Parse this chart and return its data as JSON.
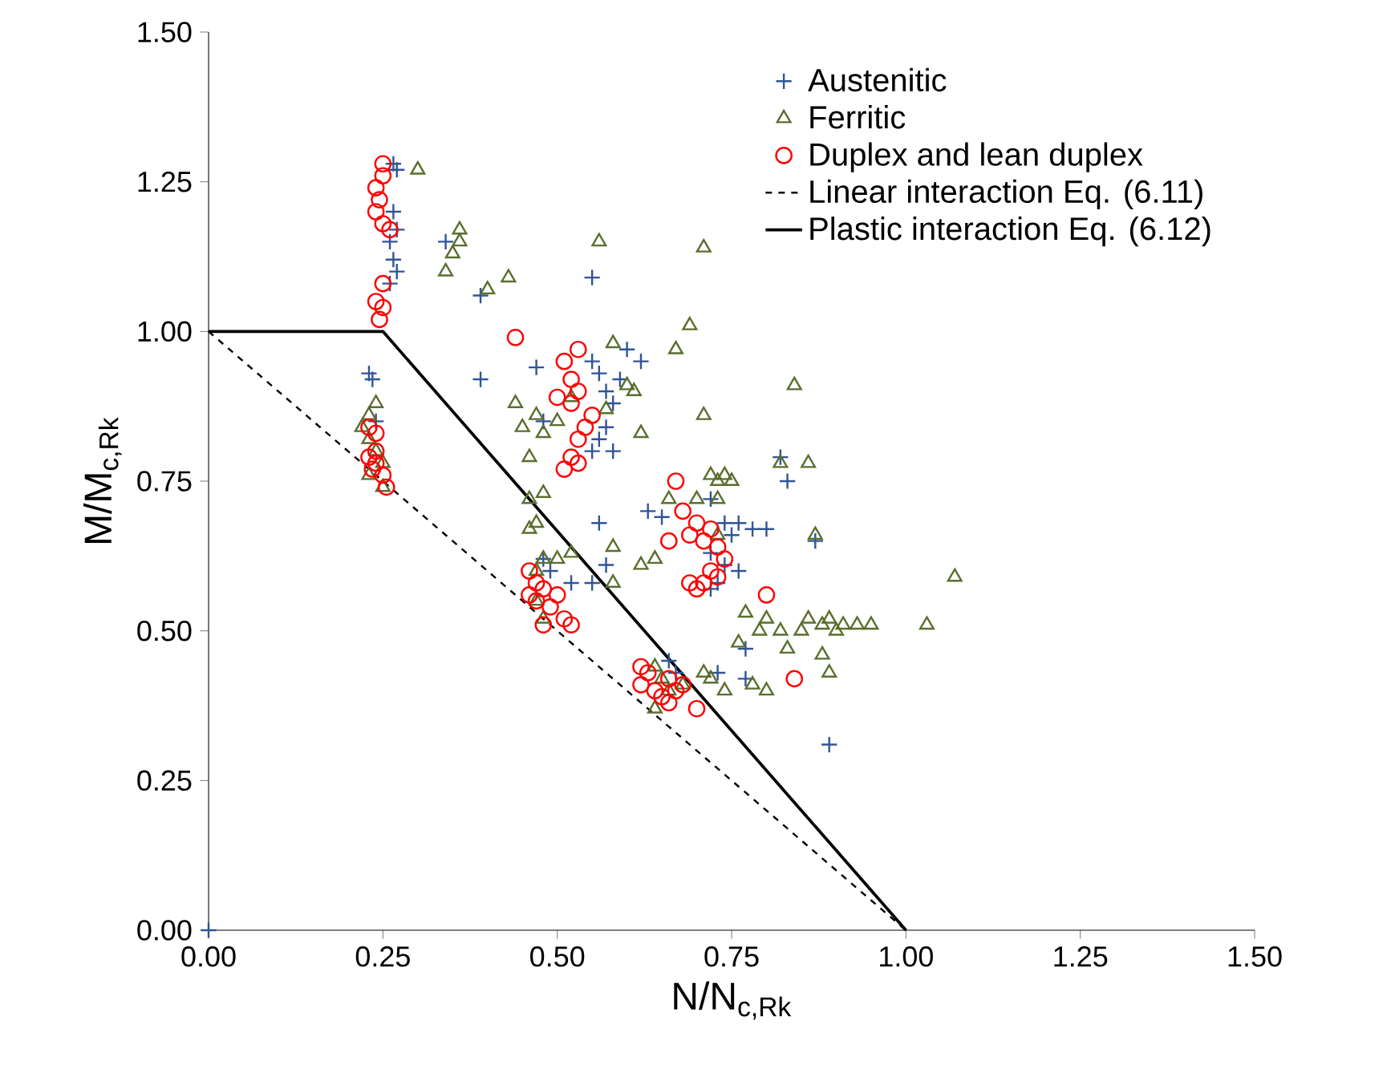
{
  "chart_data": {
    "type": "scatter",
    "xlabel": "N/N$_{c,Rk}$",
    "ylabel": "M/M$_{c,Rk}$",
    "xlim": [
      0,
      1.5
    ],
    "ylim": [
      0,
      1.5
    ],
    "xticks": [
      {
        "value": 0,
        "label": "0.00"
      },
      {
        "value": 0.25,
        "label": "0.25"
      },
      {
        "value": 0.5,
        "label": "0.50"
      },
      {
        "value": 0.75,
        "label": "0.75"
      },
      {
        "value": 1,
        "label": "1.00"
      },
      {
        "value": 1.25,
        "label": "1.25"
      },
      {
        "value": 1.5,
        "label": "1.50"
      }
    ],
    "yticks": [
      {
        "value": 0,
        "label": "0.00"
      },
      {
        "value": 0.25,
        "label": "0.25"
      },
      {
        "value": 0.5,
        "label": "0.50"
      },
      {
        "value": 0.75,
        "label": "0.75"
      },
      {
        "value": 1,
        "label": "1.00"
      },
      {
        "value": 1.25,
        "label": "1.25"
      },
      {
        "value": 1.5,
        "label": "1.50"
      }
    ],
    "legend": "top right",
    "grid": false,
    "series": [
      {
        "name": "Austenitic",
        "marker": "cross",
        "color": "#2f5597",
        "x": [
          0.265,
          0.27,
          0.265,
          0.27,
          0.26,
          0.265,
          0.27,
          0.26,
          0.23,
          0.235,
          0.24,
          0.34,
          0.39,
          0.39,
          0.55,
          0.47,
          0.48,
          0.55,
          0.56,
          0.57,
          0.58,
          0.57,
          0.56,
          0.58,
          0.59,
          0.6,
          0.62,
          0.55,
          0.48,
          0.49,
          0.52,
          0.55,
          0.66,
          0.67,
          0.63,
          0.65,
          0.72,
          0.74,
          0.75,
          0.76,
          0.78,
          0.8,
          0.83,
          0.82,
          0.72,
          0.74,
          0.76,
          0.73,
          0.72,
          0.77,
          0.73,
          0.77,
          0.89,
          0.87,
          0.56,
          0.57,
          0
        ],
        "values": [
          1.28,
          1.27,
          1.2,
          1.17,
          1.15,
          1.12,
          1.1,
          1.08,
          0.93,
          0.92,
          0.85,
          1.15,
          1.06,
          0.92,
          1.09,
          0.94,
          0.85,
          0.95,
          0.93,
          0.9,
          0.88,
          0.84,
          0.82,
          0.8,
          0.92,
          0.97,
          0.95,
          0.8,
          0.62,
          0.6,
          0.58,
          0.58,
          0.45,
          0.43,
          0.7,
          0.69,
          0.72,
          0.68,
          0.66,
          0.68,
          0.67,
          0.67,
          0.75,
          0.79,
          0.63,
          0.61,
          0.6,
          0.58,
          0.57,
          0.47,
          0.43,
          0.42,
          0.31,
          0.65,
          0.68,
          0.61,
          0
        ]
      },
      {
        "name": "Ferritic",
        "marker": "triangle",
        "color": "#5a6e2e",
        "x": [
          0.3,
          0.36,
          0.35,
          0.36,
          0.34,
          0.4,
          0.43,
          0.56,
          0.71,
          0.69,
          0.67,
          0.58,
          0.44,
          0.45,
          0.47,
          0.46,
          0.48,
          0.5,
          0.52,
          0.57,
          0.6,
          0.61,
          0.62,
          0.71,
          0.84,
          0.82,
          0.86,
          0.72,
          0.73,
          0.7,
          0.73,
          0.75,
          0.66,
          0.64,
          0.58,
          0.52,
          0.46,
          0.47,
          0.46,
          0.48,
          0.47,
          0.48,
          0.47,
          0.48,
          0.5,
          0.58,
          0.64,
          0.65,
          0.66,
          0.64,
          0.68,
          0.72,
          0.74,
          0.77,
          0.79,
          0.8,
          0.82,
          0.83,
          0.85,
          0.86,
          0.88,
          0.89,
          0.9,
          0.91,
          0.93,
          0.95,
          0.88,
          0.89,
          0.78,
          0.8,
          1.03,
          1.07,
          0.76,
          0.71,
          0.23,
          0.22,
          0.23,
          0.24,
          0.25,
          0.23,
          0.24,
          0.25,
          0.87,
          0.62,
          0.73,
          0.74
        ],
        "values": [
          1.27,
          1.17,
          1.13,
          1.15,
          1.1,
          1.07,
          1.09,
          1.15,
          1.14,
          1.01,
          0.97,
          0.98,
          0.88,
          0.84,
          0.86,
          0.79,
          0.83,
          0.85,
          0.89,
          0.87,
          0.91,
          0.9,
          0.83,
          0.86,
          0.91,
          0.78,
          0.78,
          0.76,
          0.75,
          0.72,
          0.72,
          0.75,
          0.72,
          0.62,
          0.64,
          0.63,
          0.72,
          0.68,
          0.67,
          0.73,
          0.6,
          0.62,
          0.55,
          0.52,
          0.62,
          0.58,
          0.44,
          0.42,
          0.4,
          0.37,
          0.41,
          0.42,
          0.4,
          0.53,
          0.5,
          0.52,
          0.5,
          0.47,
          0.5,
          0.52,
          0.51,
          0.52,
          0.5,
          0.51,
          0.51,
          0.51,
          0.46,
          0.43,
          0.41,
          0.4,
          0.51,
          0.59,
          0.48,
          0.43,
          0.86,
          0.84,
          0.82,
          0.8,
          0.78,
          0.76,
          0.88,
          0.74,
          0.66,
          0.61,
          0.66,
          0.76
        ]
      },
      {
        "name": "Duplex and lean duplex",
        "marker": "circle",
        "color": "#ff0000",
        "x": [
          0.25,
          0.25,
          0.24,
          0.245,
          0.24,
          0.25,
          0.26,
          0.25,
          0.24,
          0.245,
          0.25,
          0.23,
          0.24,
          0.23,
          0.24,
          0.235,
          0.25,
          0.255,
          0.24,
          0.44,
          0.51,
          0.52,
          0.53,
          0.5,
          0.52,
          0.55,
          0.54,
          0.53,
          0.52,
          0.53,
          0.51,
          0.53,
          0.46,
          0.47,
          0.46,
          0.47,
          0.48,
          0.49,
          0.5,
          0.51,
          0.52,
          0.48,
          0.62,
          0.63,
          0.62,
          0.64,
          0.65,
          0.66,
          0.67,
          0.68,
          0.66,
          0.7,
          0.71,
          0.72,
          0.7,
          0.69,
          0.73,
          0.74,
          0.67,
          0.68,
          0.7,
          0.69,
          0.72,
          0.71,
          0.73,
          0.84,
          0.8,
          0.66
        ],
        "values": [
          1.28,
          1.26,
          1.24,
          1.22,
          1.2,
          1.18,
          1.17,
          1.04,
          1.05,
          1.02,
          1.08,
          0.84,
          0.83,
          0.79,
          0.78,
          0.77,
          0.76,
          0.74,
          0.8,
          0.99,
          0.95,
          0.92,
          0.9,
          0.89,
          0.88,
          0.86,
          0.84,
          0.82,
          0.79,
          0.78,
          0.77,
          0.97,
          0.6,
          0.58,
          0.56,
          0.55,
          0.57,
          0.54,
          0.56,
          0.52,
          0.51,
          0.51,
          0.44,
          0.43,
          0.41,
          0.4,
          0.39,
          0.42,
          0.4,
          0.41,
          0.38,
          0.37,
          0.65,
          0.67,
          0.68,
          0.66,
          0.64,
          0.62,
          0.75,
          0.7,
          0.57,
          0.58,
          0.6,
          0.58,
          0.59,
          0.42,
          0.56,
          0.65
        ]
      },
      {
        "name": "Linear interaction Eq. (6.11)",
        "type": "line",
        "marker": "none",
        "line_style": "dashed",
        "color": "#000000",
        "x": [
          0,
          1
        ],
        "values": [
          1,
          0
        ]
      },
      {
        "name": "Plastic interaction Eq. (6.12)",
        "type": "line",
        "marker": "none",
        "line_style": "solid",
        "color": "#000000",
        "x": [
          0,
          0.22,
          0.25,
          1
        ],
        "values": [
          1,
          1,
          1,
          0
        ]
      }
    ]
  }
}
